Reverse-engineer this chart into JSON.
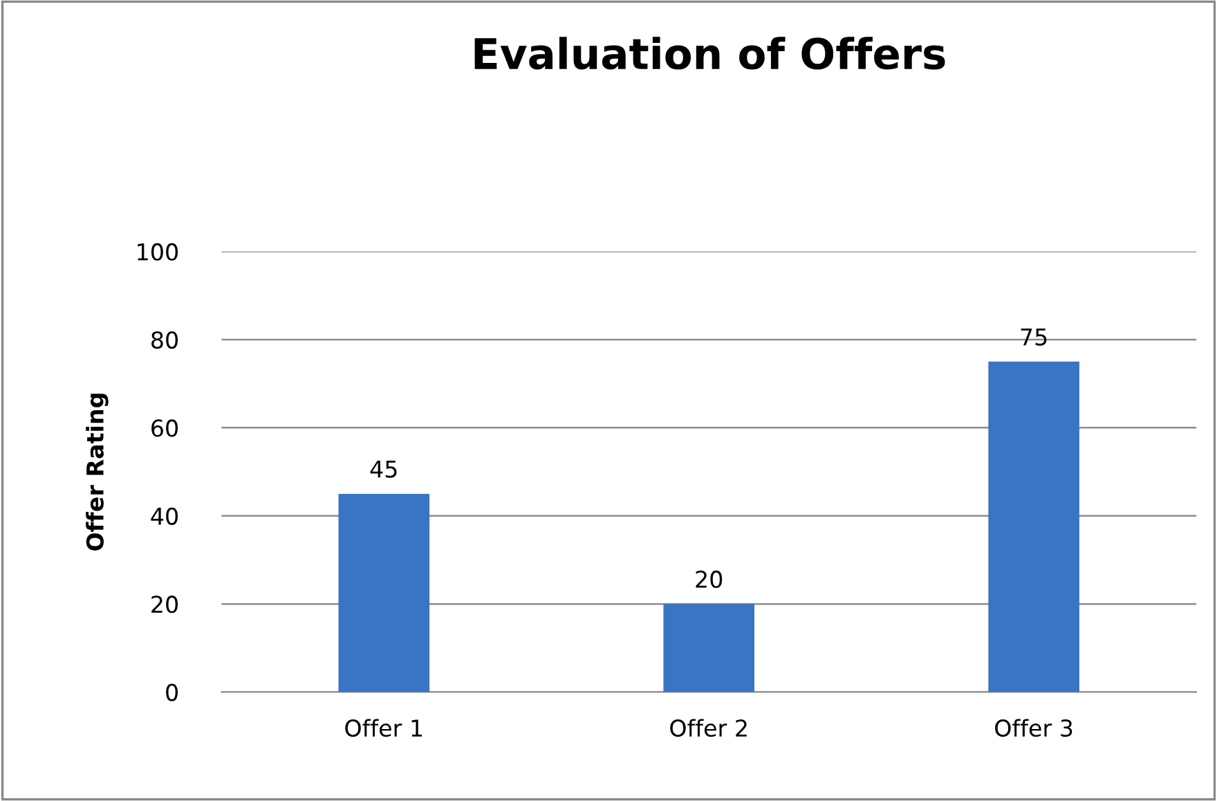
{
  "chart_data": {
    "type": "bar",
    "title": "Evaluation of Offers",
    "ylabel": "Offer Rating",
    "categories": [
      "Offer 1",
      "Offer 2",
      "Offer 3"
    ],
    "values": [
      45,
      20,
      75
    ],
    "color": "#3a74c4",
    "ylim": [
      0,
      100
    ],
    "yticks": [
      0,
      20,
      40,
      60,
      80,
      100
    ],
    "grid": "y",
    "data_labels": true,
    "legend": false
  }
}
